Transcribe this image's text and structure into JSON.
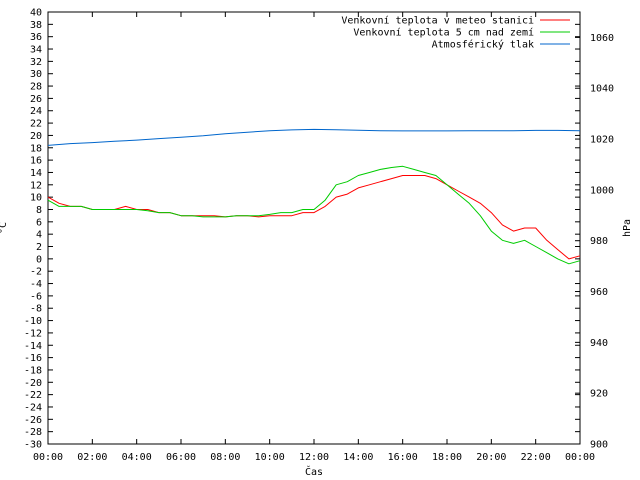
{
  "chart_data": {
    "type": "line",
    "title": "",
    "xlabel": "Čas",
    "ylabel": "°C",
    "y2label": "hPa",
    "x_ticks": [
      "00:00",
      "02:00",
      "04:00",
      "06:00",
      "08:00",
      "10:00",
      "12:00",
      "14:00",
      "16:00",
      "18:00",
      "20:00",
      "22:00",
      "00:00"
    ],
    "y_ticks": [
      40,
      38,
      36,
      34,
      32,
      30,
      28,
      26,
      24,
      22,
      20,
      18,
      16,
      14,
      12,
      10,
      8,
      6,
      4,
      2,
      0,
      -2,
      -4,
      -6,
      -8,
      -10,
      -12,
      -14,
      -16,
      -18,
      -20,
      -22,
      -24,
      -26,
      -28,
      -30
    ],
    "y2_ticks": [
      1060,
      1040,
      1020,
      1000,
      980,
      960,
      940,
      920,
      900
    ],
    "xlim_hours": [
      0,
      24
    ],
    "ylim": [
      -30,
      40
    ],
    "y2lim": [
      900,
      1070
    ],
    "grid": false,
    "legend_position": "top-right",
    "series": [
      {
        "name": "Venkovní teplota v meteo stanici",
        "color": "#ff0000",
        "axis": "left",
        "x": [
          0,
          0.5,
          1,
          1.5,
          2,
          2.5,
          3,
          3.5,
          4,
          4.5,
          5,
          5.5,
          6,
          6.5,
          7,
          7.5,
          8,
          8.5,
          9,
          9.5,
          10,
          10.5,
          11,
          11.5,
          12,
          12.5,
          13,
          13.5,
          14,
          14.5,
          15,
          15.5,
          16,
          16.5,
          17,
          17.5,
          18,
          18.5,
          19,
          19.5,
          20,
          20.5,
          21,
          21.5,
          22,
          22.5,
          23,
          23.5,
          24
        ],
        "values": [
          10,
          9,
          8.5,
          8.5,
          8,
          8,
          8,
          8.5,
          8,
          8,
          7.5,
          7.5,
          7,
          7,
          7,
          7,
          6.8,
          7,
          7,
          6.8,
          7,
          7,
          7,
          7.5,
          7.5,
          8.5,
          10,
          10.5,
          11.5,
          12,
          12.5,
          13,
          13.5,
          13.5,
          13.5,
          13,
          12,
          11,
          10,
          9,
          7.5,
          5.5,
          4.5,
          5,
          5,
          3,
          1.5,
          0,
          0.5
        ]
      },
      {
        "name": "Venkovní teplota 5 cm nad zemí",
        "color": "#00cc00",
        "axis": "left",
        "x": [
          0,
          0.5,
          1,
          1.5,
          2,
          2.5,
          3,
          3.5,
          4,
          4.5,
          5,
          5.5,
          6,
          6.5,
          7,
          7.5,
          8,
          8.5,
          9,
          9.5,
          10,
          10.5,
          11,
          11.5,
          12,
          12.5,
          13,
          13.5,
          14,
          14.5,
          15,
          15.5,
          16,
          16.5,
          17,
          17.5,
          18,
          18.5,
          19,
          19.5,
          20,
          20.5,
          21,
          21.5,
          22,
          22.5,
          23,
          23.5,
          24
        ],
        "values": [
          9.5,
          8.5,
          8.5,
          8.5,
          8,
          8,
          8,
          8,
          8,
          7.8,
          7.5,
          7.5,
          7,
          7,
          6.8,
          6.8,
          6.8,
          7,
          7,
          7,
          7.2,
          7.5,
          7.5,
          8,
          8,
          9.5,
          12,
          12.5,
          13.5,
          14,
          14.5,
          14.8,
          15,
          14.5,
          14,
          13.5,
          12,
          10.5,
          9,
          7,
          4.5,
          3,
          2.5,
          3,
          2,
          1,
          0,
          -0.8,
          -0.3
        ]
      },
      {
        "name": "Atmosférický tlak",
        "color": "#0066cc",
        "axis": "right",
        "x": [
          0,
          1,
          2,
          3,
          4,
          5,
          6,
          7,
          8,
          9,
          10,
          11,
          12,
          13,
          14,
          15,
          16,
          17,
          18,
          19,
          20,
          21,
          22,
          23,
          24
        ],
        "values": [
          1017.5,
          1018.2,
          1018.6,
          1019.1,
          1019.6,
          1020.2,
          1020.7,
          1021.3,
          1022.1,
          1022.7,
          1023.3,
          1023.6,
          1023.8,
          1023.7,
          1023.5,
          1023.3,
          1023.2,
          1023.2,
          1023.2,
          1023.3,
          1023.3,
          1023.3,
          1023.4,
          1023.4,
          1023.3
        ]
      }
    ]
  }
}
